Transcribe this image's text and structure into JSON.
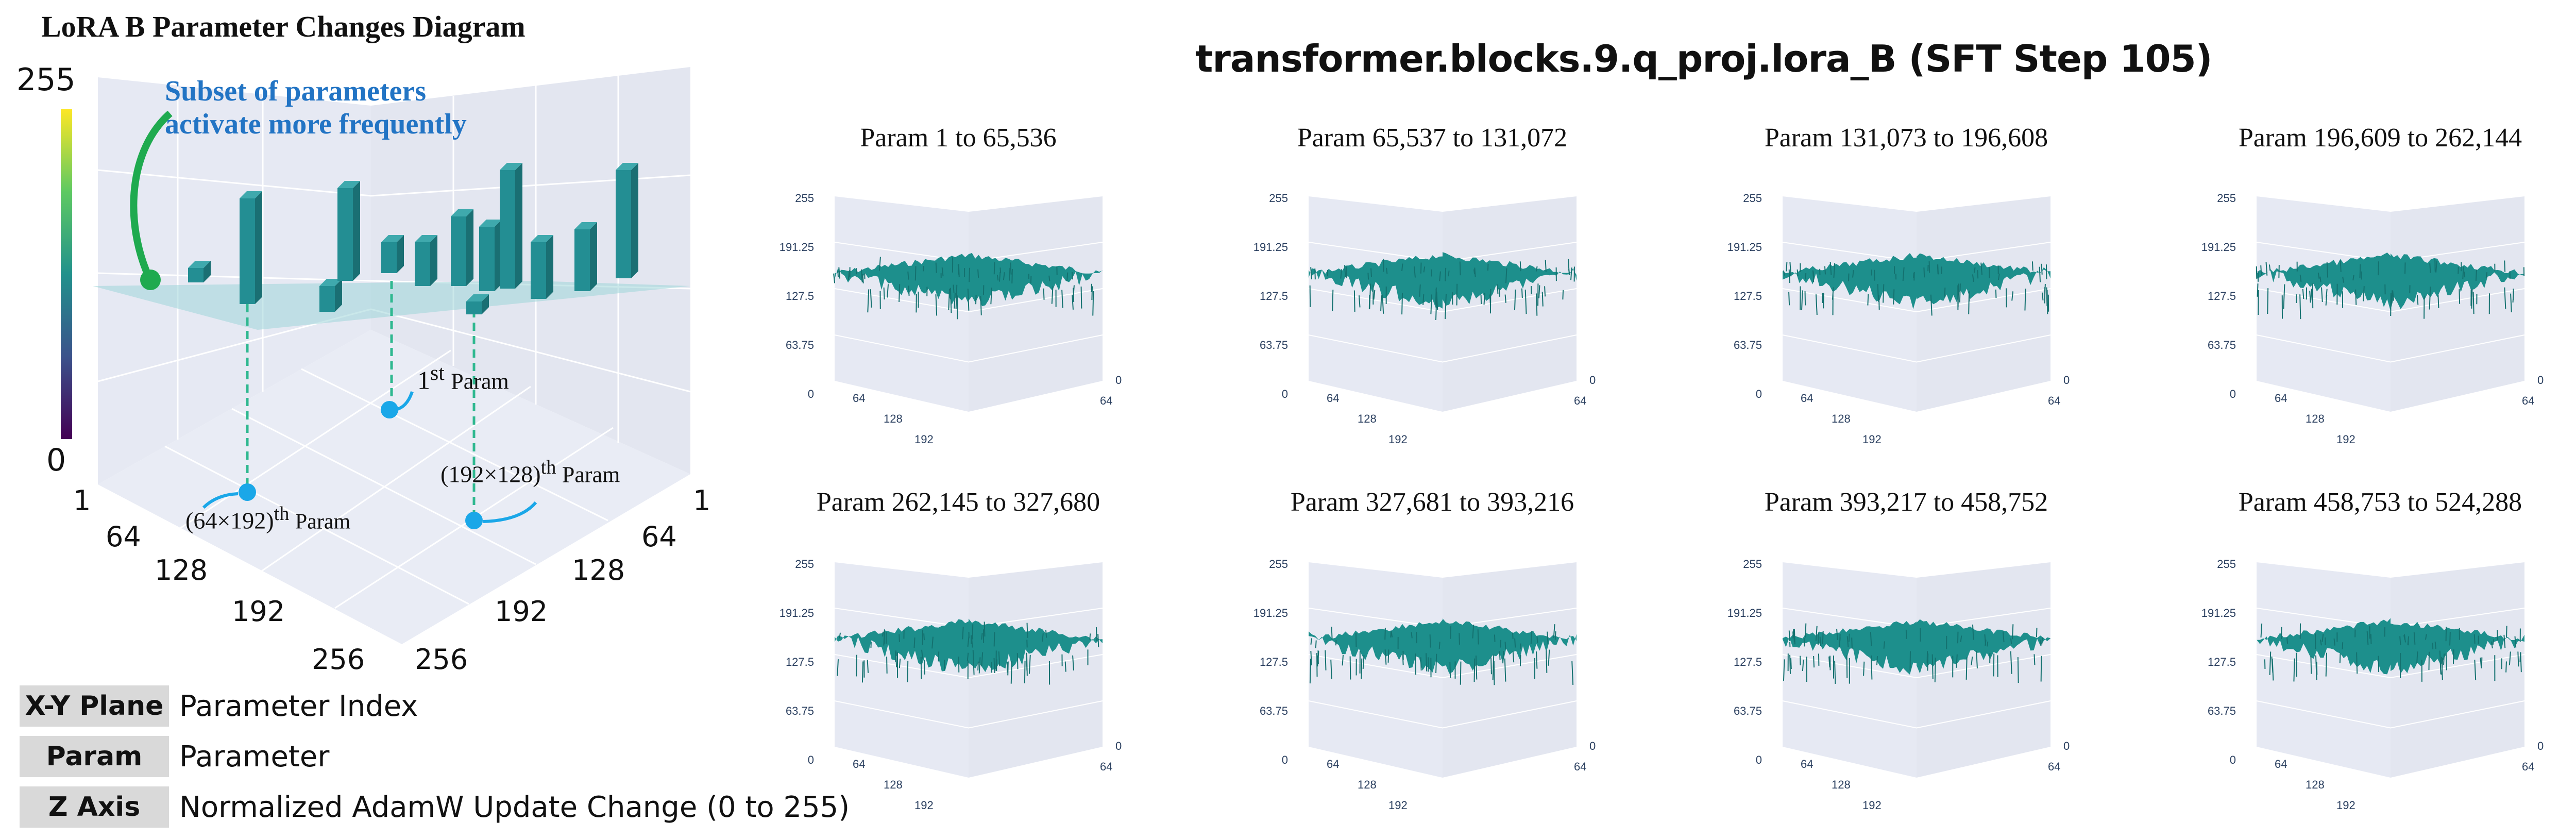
{
  "diagram": {
    "title": "LoRA B Parameter Changes Diagram",
    "colorbar": {
      "max_label": "255",
      "min_label": "0"
    },
    "annotation": {
      "line1": "Subset of parameters",
      "line2": "activate more frequently"
    },
    "axis_left_ticks": [
      "1",
      "64",
      "128",
      "192",
      "256"
    ],
    "axis_right_ticks": [
      "1",
      "64",
      "128",
      "192",
      "256"
    ],
    "param_labels": {
      "first": {
        "prefix": "1",
        "sup": "st",
        "suffix": "Param"
      },
      "second": {
        "prefix": "(64×192)",
        "sup": "th",
        "suffix": "Param"
      },
      "third": {
        "prefix": "(192×128)",
        "sup": "th",
        "suffix": "Param"
      }
    }
  },
  "legend": [
    {
      "key": "X-Y Plane",
      "value": "Parameter Index"
    },
    {
      "key": "Param",
      "value": "Parameter"
    },
    {
      "key": "Z Axis",
      "value": "Normalized AdamW Update Change (0 to 255)"
    }
  ],
  "surfaces": {
    "title": "transformer.blocks.9.q_proj.lora_B (SFT Step 105)",
    "z_ticks": [
      "255",
      "191.25",
      "127.5",
      "63.75",
      "0"
    ],
    "left_ticks": [
      "64",
      "128",
      "192"
    ],
    "right_ticks": [
      "0",
      "64"
    ],
    "surface_color": "#1d8f8c",
    "panels": [
      {
        "title": "Param 1 to 65,536"
      },
      {
        "title": "Param 65,537 to 131,072"
      },
      {
        "title": "Param 131,073 to 196,608"
      },
      {
        "title": "Param 196,609 to 262,144"
      },
      {
        "title": "Param 262,145 to 327,680"
      },
      {
        "title": "Param 327,681 to 393,216"
      },
      {
        "title": "Param 393,217 to 458,752"
      },
      {
        "title": "Param 458,753 to 524,288"
      }
    ]
  }
}
